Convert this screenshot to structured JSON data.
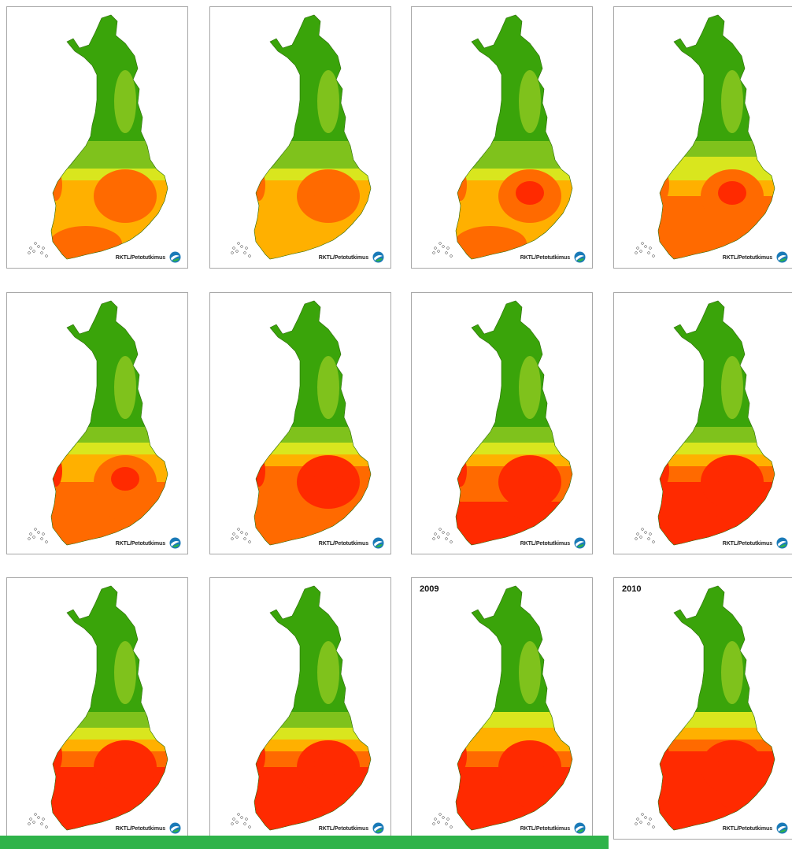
{
  "map_grid": {
    "credit_text": "RKTL/Petotutkimus",
    "colors": {
      "low": "#3aa40a",
      "mid_low": "#7fc21c",
      "mid": "#d9e61e",
      "mid_high": "#ffb000",
      "high": "#ff6a00",
      "very_high": "#ff2a00",
      "accent_bar": "#2fb34a"
    },
    "panels": [
      {
        "year": "",
        "intensity": 0.35
      },
      {
        "year": "",
        "intensity": 0.3
      },
      {
        "year": "",
        "intensity": 0.4
      },
      {
        "year": "",
        "intensity": 0.45
      },
      {
        "year": "",
        "intensity": 0.55
      },
      {
        "year": "",
        "intensity": 0.62
      },
      {
        "year": "",
        "intensity": 0.7
      },
      {
        "year": "",
        "intensity": 0.72
      },
      {
        "year": "",
        "intensity": 0.75
      },
      {
        "year": "",
        "intensity": 0.78
      },
      {
        "year": "2009",
        "intensity": 0.88
      },
      {
        "year": "2010",
        "intensity": 0.92
      }
    ]
  }
}
